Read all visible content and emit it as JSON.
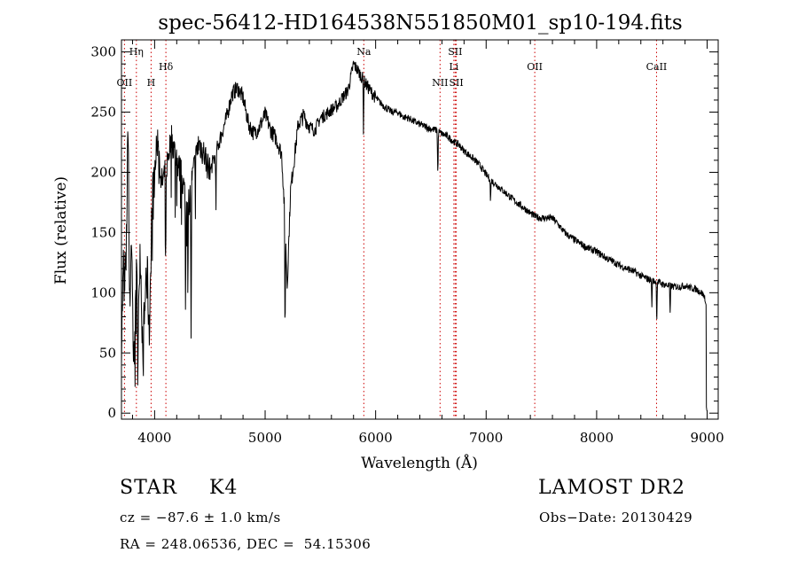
{
  "chart_data": {
    "type": "line",
    "title": "spec-56412-HD164538N551850M01_sp10-194.fits",
    "xlabel": "Wavelength (Å)",
    "ylabel": "Flux (relative)",
    "xlim": [
      3700,
      9100
    ],
    "ylim": [
      -5,
      310
    ],
    "x_ticks": [
      4000,
      5000,
      6000,
      7000,
      8000,
      9000
    ],
    "y_ticks": [
      0,
      50,
      100,
      150,
      200,
      250,
      300
    ],
    "x_minor_step": 200,
    "y_minor_step": 10,
    "grid": false,
    "line_color": "#000000",
    "marker_color": "#cc0000",
    "continuum": [
      [
        3700,
        60
      ],
      [
        3720,
        130
      ],
      [
        3740,
        110
      ],
      [
        3760,
        245
      ],
      [
        3775,
        90
      ],
      [
        3790,
        150
      ],
      [
        3810,
        50
      ],
      [
        3830,
        120
      ],
      [
        3850,
        90
      ],
      [
        3870,
        140
      ],
      [
        3890,
        60
      ],
      [
        3910,
        80
      ],
      [
        3930,
        140
      ],
      [
        3950,
        60
      ],
      [
        3975,
        170
      ],
      [
        4000,
        205
      ],
      [
        4030,
        230
      ],
      [
        4060,
        190
      ],
      [
        4100,
        200
      ],
      [
        4150,
        230
      ],
      [
        4200,
        210
      ],
      [
        4250,
        195
      ],
      [
        4300,
        170
      ],
      [
        4350,
        200
      ],
      [
        4400,
        225
      ],
      [
        4450,
        215
      ],
      [
        4500,
        200
      ],
      [
        4550,
        215
      ],
      [
        4600,
        230
      ],
      [
        4650,
        245
      ],
      [
        4700,
        265
      ],
      [
        4750,
        270
      ],
      [
        4800,
        262
      ],
      [
        4850,
        240
      ],
      [
        4900,
        232
      ],
      [
        4950,
        238
      ],
      [
        5000,
        248
      ],
      [
        5050,
        235
      ],
      [
        5100,
        228
      ],
      [
        5150,
        215
      ],
      [
        5180,
        160
      ],
      [
        5200,
        105
      ],
      [
        5230,
        185
      ],
      [
        5300,
        240
      ],
      [
        5350,
        247
      ],
      [
        5400,
        238
      ],
      [
        5450,
        235
      ],
      [
        5500,
        245
      ],
      [
        5550,
        248
      ],
      [
        5600,
        252
      ],
      [
        5650,
        255
      ],
      [
        5700,
        262
      ],
      [
        5750,
        268
      ],
      [
        5800,
        290
      ],
      [
        5850,
        283
      ],
      [
        5900,
        275
      ],
      [
        5950,
        268
      ],
      [
        6000,
        262
      ],
      [
        6050,
        257
      ],
      [
        6100,
        253
      ],
      [
        6150,
        250
      ],
      [
        6200,
        250
      ],
      [
        6250,
        246
      ],
      [
        6300,
        245
      ],
      [
        6350,
        242
      ],
      [
        6400,
        240
      ],
      [
        6450,
        238
      ],
      [
        6500,
        236
      ],
      [
        6550,
        235
      ],
      [
        6600,
        232
      ],
      [
        6650,
        230
      ],
      [
        6700,
        226
      ],
      [
        6750,
        223
      ],
      [
        6800,
        218
      ],
      [
        6850,
        214
      ],
      [
        6900,
        210
      ],
      [
        6950,
        205
      ],
      [
        7000,
        198
      ],
      [
        7050,
        193
      ],
      [
        7100,
        189
      ],
      [
        7150,
        185
      ],
      [
        7200,
        181
      ],
      [
        7250,
        177
      ],
      [
        7300,
        173
      ],
      [
        7350,
        170
      ],
      [
        7400,
        166
      ],
      [
        7450,
        163
      ],
      [
        7500,
        162
      ],
      [
        7550,
        162
      ],
      [
        7600,
        162
      ],
      [
        7650,
        157
      ],
      [
        7700,
        151
      ],
      [
        7750,
        147
      ],
      [
        7800,
        144
      ],
      [
        7850,
        141
      ],
      [
        7900,
        138
      ],
      [
        7950,
        136
      ],
      [
        8000,
        134
      ],
      [
        8050,
        131
      ],
      [
        8100,
        128
      ],
      [
        8150,
        126
      ],
      [
        8200,
        123
      ],
      [
        8250,
        121
      ],
      [
        8300,
        119
      ],
      [
        8350,
        117
      ],
      [
        8400,
        114
      ],
      [
        8450,
        112
      ],
      [
        8500,
        110
      ],
      [
        8550,
        109
      ],
      [
        8600,
        107
      ],
      [
        8650,
        106
      ],
      [
        8700,
        105
      ],
      [
        8750,
        105
      ],
      [
        8800,
        106
      ],
      [
        8850,
        104
      ],
      [
        8900,
        103
      ],
      [
        8950,
        100
      ],
      [
        8980,
        96
      ]
    ],
    "dips": [
      [
        3770,
        20
      ],
      [
        3805,
        15
      ],
      [
        3850,
        35
      ],
      [
        3930,
        40
      ],
      [
        4100,
        95
      ],
      [
        4280,
        100
      ],
      [
        4330,
        125
      ],
      [
        4555,
        50
      ],
      [
        5180,
        100
      ],
      [
        5890,
        40
      ],
      [
        6563,
        40
      ],
      [
        7040,
        20
      ],
      [
        8500,
        20
      ],
      [
        8544,
        35
      ],
      [
        8665,
        25
      ]
    ],
    "end_drop": [
      [
        8990,
        90
      ],
      [
        8993,
        5
      ],
      [
        8997,
        2
      ]
    ],
    "lines": [
      {
        "label": "OII",
        "wl": 3727,
        "row": 3
      },
      {
        "label": "Hη",
        "wl": 3835,
        "row": 1
      },
      {
        "label": "H",
        "wl": 3968,
        "row": 3
      },
      {
        "label": "Hδ",
        "wl": 4102,
        "row": 2
      },
      {
        "label": "Na",
        "wl": 5893,
        "row": 1
      },
      {
        "label": "NII",
        "wl": 6583,
        "row": 3
      },
      {
        "label": "SII",
        "wl": 6720,
        "row": 1
      },
      {
        "label": "Li",
        "wl": 6708,
        "row": 2
      },
      {
        "label": "SII",
        "wl": 6730,
        "row": 3
      },
      {
        "label": "OII",
        "wl": 7440,
        "row": 2
      },
      {
        "label": "CaII",
        "wl": 8542,
        "row": 2
      }
    ]
  },
  "info": {
    "object_class": "STAR",
    "subclass": "K4",
    "survey": "LAMOST DR2",
    "redshift": "cz = −87.6 ± 1.0 km/s",
    "obs_date": "Obs−Date: 20130429",
    "coords": "RA = 248.06536, DEC =  54.15306"
  }
}
